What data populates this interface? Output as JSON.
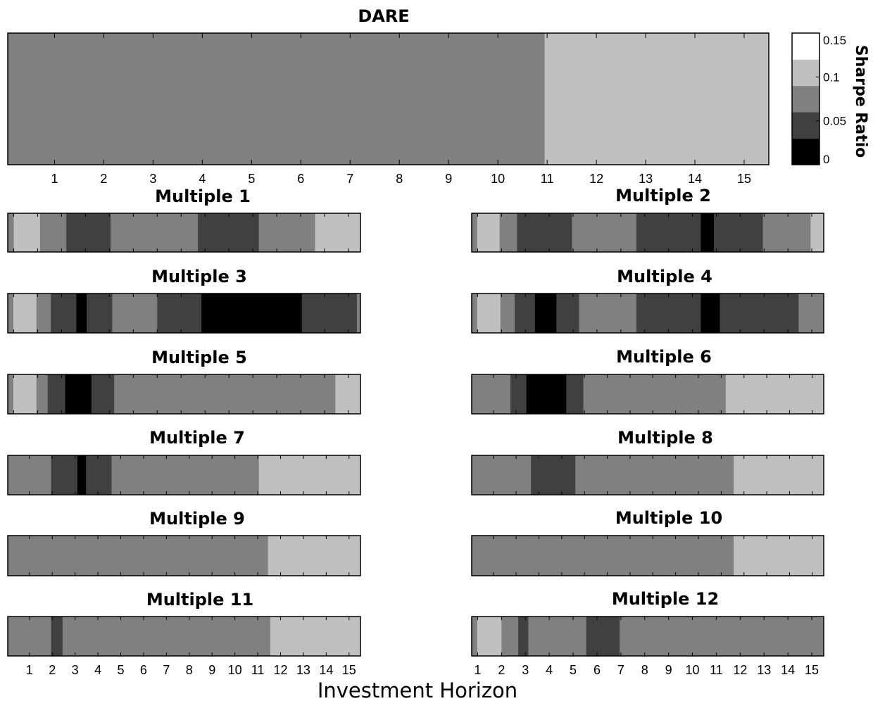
{
  "chart_data": {
    "type": "heatmap",
    "xlabel": "Investment Horizon",
    "colorbar": {
      "title": "Sharpe Ratio",
      "range": [
        0,
        0.15
      ],
      "tick_labels": [
        "0.15",
        "0.1",
        "0.05",
        "0"
      ],
      "tick_values": [
        0.15,
        0.1,
        0.05,
        0
      ],
      "levels": [
        {
          "range": [
            0,
            0.03
          ],
          "color": "#000000"
        },
        {
          "range": [
            0.03,
            0.06
          ],
          "color": "#404040"
        },
        {
          "range": [
            0.06,
            0.09
          ],
          "color": "#808080"
        },
        {
          "range": [
            0.09,
            0.12
          ],
          "color": "#c0c0c0"
        },
        {
          "range": [
            0.12,
            0.15
          ],
          "color": "#ffffff"
        }
      ]
    },
    "panels": [
      {
        "title": "DARE",
        "xrange": [
          0.05,
          15.5
        ],
        "xticks": [
          1,
          2,
          3,
          4,
          5,
          6,
          7,
          8,
          9,
          10,
          11,
          12,
          13,
          14,
          15
        ],
        "segments": [
          {
            "x0": 0.05,
            "x1": 10.95,
            "level": 2
          },
          {
            "x0": 10.95,
            "x1": 15.5,
            "level": 3
          }
        ]
      },
      {
        "title": "Multiple 1",
        "xrange": [
          0.75,
          15.5
        ],
        "xticks": [
          1,
          2,
          3,
          4,
          5,
          6,
          7,
          8,
          9,
          10,
          11,
          12,
          13,
          14,
          15
        ],
        "segments": [
          {
            "x0": 0.75,
            "x1": 1.0,
            "level": 2
          },
          {
            "x0": 1.0,
            "x1": 2.1,
            "level": 3
          },
          {
            "x0": 2.1,
            "x1": 3.2,
            "level": 2
          },
          {
            "x0": 3.2,
            "x1": 5.05,
            "level": 1
          },
          {
            "x0": 5.05,
            "x1": 8.7,
            "level": 2
          },
          {
            "x0": 8.7,
            "x1": 11.25,
            "level": 1
          },
          {
            "x0": 11.25,
            "x1": 13.6,
            "level": 2
          },
          {
            "x0": 13.6,
            "x1": 15.5,
            "level": 3
          }
        ]
      },
      {
        "title": "Multiple 2",
        "xrange": [
          0.75,
          15.5
        ],
        "xticks": [
          1,
          2,
          3,
          4,
          5,
          6,
          7,
          8,
          9,
          10,
          11,
          12,
          13,
          14,
          15
        ],
        "segments": [
          {
            "x0": 0.75,
            "x1": 0.98,
            "level": 2
          },
          {
            "x0": 0.98,
            "x1": 1.92,
            "level": 3
          },
          {
            "x0": 1.92,
            "x1": 2.65,
            "level": 2
          },
          {
            "x0": 2.65,
            "x1": 4.95,
            "level": 1
          },
          {
            "x0": 4.95,
            "x1": 7.65,
            "level": 2
          },
          {
            "x0": 7.65,
            "x1": 10.35,
            "level": 1
          },
          {
            "x0": 10.35,
            "x1": 10.9,
            "level": 0
          },
          {
            "x0": 10.9,
            "x1": 12.95,
            "level": 1
          },
          {
            "x0": 12.95,
            "x1": 14.95,
            "level": 2
          },
          {
            "x0": 14.95,
            "x1": 15.5,
            "level": 3
          }
        ]
      },
      {
        "title": "Multiple 3",
        "xrange": [
          0.75,
          15.5
        ],
        "xticks": [
          1,
          2,
          3,
          4,
          5,
          6,
          7,
          8,
          9,
          10,
          11,
          12,
          13,
          14,
          15
        ],
        "segments": [
          {
            "x0": 0.75,
            "x1": 0.98,
            "level": 2
          },
          {
            "x0": 0.98,
            "x1": 1.95,
            "level": 3
          },
          {
            "x0": 1.95,
            "x1": 2.55,
            "level": 2
          },
          {
            "x0": 2.55,
            "x1": 3.62,
            "level": 1
          },
          {
            "x0": 3.62,
            "x1": 4.05,
            "level": 0
          },
          {
            "x0": 4.05,
            "x1": 5.12,
            "level": 1
          },
          {
            "x0": 5.12,
            "x1": 7.0,
            "level": 2
          },
          {
            "x0": 7.0,
            "x1": 8.85,
            "level": 1
          },
          {
            "x0": 8.85,
            "x1": 13.05,
            "level": 0
          },
          {
            "x0": 13.05,
            "x1": 15.35,
            "level": 1
          },
          {
            "x0": 15.35,
            "x1": 15.5,
            "level": 2
          }
        ]
      },
      {
        "title": "Multiple 4",
        "xrange": [
          0.75,
          15.5
        ],
        "xticks": [
          1,
          2,
          3,
          4,
          5,
          6,
          7,
          8,
          9,
          10,
          11,
          12,
          13,
          14,
          15
        ],
        "segments": [
          {
            "x0": 0.75,
            "x1": 0.98,
            "level": 2
          },
          {
            "x0": 0.98,
            "x1": 1.95,
            "level": 3
          },
          {
            "x0": 1.95,
            "x1": 2.55,
            "level": 2
          },
          {
            "x0": 2.55,
            "x1": 3.4,
            "level": 1
          },
          {
            "x0": 3.4,
            "x1": 4.3,
            "level": 0
          },
          {
            "x0": 4.3,
            "x1": 5.25,
            "level": 1
          },
          {
            "x0": 5.25,
            "x1": 7.65,
            "level": 2
          },
          {
            "x0": 7.65,
            "x1": 10.35,
            "level": 1
          },
          {
            "x0": 10.35,
            "x1": 11.15,
            "level": 0
          },
          {
            "x0": 11.15,
            "x1": 14.45,
            "level": 1
          },
          {
            "x0": 14.45,
            "x1": 15.5,
            "level": 2
          }
        ]
      },
      {
        "title": "Multiple 5",
        "xrange": [
          0.75,
          15.5
        ],
        "xticks": [
          1,
          2,
          3,
          4,
          5,
          6,
          7,
          8,
          9,
          10,
          11,
          12,
          13,
          14,
          15
        ],
        "segments": [
          {
            "x0": 0.75,
            "x1": 0.98,
            "level": 2
          },
          {
            "x0": 0.98,
            "x1": 1.95,
            "level": 3
          },
          {
            "x0": 1.95,
            "x1": 2.42,
            "level": 2
          },
          {
            "x0": 2.42,
            "x1": 3.15,
            "level": 1
          },
          {
            "x0": 3.15,
            "x1": 4.25,
            "level": 0
          },
          {
            "x0": 4.25,
            "x1": 5.2,
            "level": 1
          },
          {
            "x0": 5.2,
            "x1": 14.45,
            "level": 2
          },
          {
            "x0": 14.45,
            "x1": 15.5,
            "level": 3
          }
        ]
      },
      {
        "title": "Multiple 6",
        "xrange": [
          0.05,
          15.5
        ],
        "xticks": [
          1,
          2,
          3,
          4,
          5,
          6,
          7,
          8,
          9,
          10,
          11,
          12,
          13,
          14,
          15
        ],
        "segments": [
          {
            "x0": 0.05,
            "x1": 1.75,
            "level": 2
          },
          {
            "x0": 1.75,
            "x1": 2.45,
            "level": 1
          },
          {
            "x0": 2.45,
            "x1": 4.2,
            "level": 0
          },
          {
            "x0": 4.2,
            "x1": 4.95,
            "level": 1
          },
          {
            "x0": 4.95,
            "x1": 11.2,
            "level": 2
          },
          {
            "x0": 11.2,
            "x1": 15.5,
            "level": 3
          }
        ]
      },
      {
        "title": "Multiple 7",
        "xrange": [
          0.05,
          15.5
        ],
        "xticks": [
          1,
          2,
          3,
          4,
          5,
          6,
          7,
          8,
          9,
          10,
          11,
          12,
          13,
          14,
          15
        ],
        "segments": [
          {
            "x0": 0.05,
            "x1": 1.95,
            "level": 2
          },
          {
            "x0": 1.95,
            "x1": 3.1,
            "level": 1
          },
          {
            "x0": 3.1,
            "x1": 3.48,
            "level": 0
          },
          {
            "x0": 3.48,
            "x1": 4.6,
            "level": 1
          },
          {
            "x0": 4.6,
            "x1": 11.05,
            "level": 2
          },
          {
            "x0": 11.05,
            "x1": 15.5,
            "level": 3
          }
        ]
      },
      {
        "title": "Multiple 8",
        "xrange": [
          0.05,
          15.5
        ],
        "xticks": [
          1,
          2,
          3,
          4,
          5,
          6,
          7,
          8,
          9,
          10,
          11,
          12,
          13,
          14,
          15
        ],
        "segments": [
          {
            "x0": 0.05,
            "x1": 2.65,
            "level": 2
          },
          {
            "x0": 2.65,
            "x1": 4.6,
            "level": 1
          },
          {
            "x0": 4.6,
            "x1": 11.55,
            "level": 2
          },
          {
            "x0": 11.55,
            "x1": 15.5,
            "level": 3
          }
        ]
      },
      {
        "title": "Multiple 9",
        "xrange": [
          0.05,
          15.5
        ],
        "xticks": [
          1,
          2,
          3,
          4,
          5,
          6,
          7,
          8,
          9,
          10,
          11,
          12,
          13,
          14,
          15
        ],
        "segments": [
          {
            "x0": 0.05,
            "x1": 11.45,
            "level": 2
          },
          {
            "x0": 11.45,
            "x1": 15.5,
            "level": 3
          }
        ]
      },
      {
        "title": "Multiple 10",
        "xrange": [
          0.05,
          15.5
        ],
        "xticks": [
          1,
          2,
          3,
          4,
          5,
          6,
          7,
          8,
          9,
          10,
          11,
          12,
          13,
          14,
          15
        ],
        "segments": [
          {
            "x0": 0.05,
            "x1": 11.55,
            "level": 2
          },
          {
            "x0": 11.55,
            "x1": 15.5,
            "level": 3
          }
        ]
      },
      {
        "title": "Multiple 11",
        "xrange": [
          0.05,
          15.5
        ],
        "xticks": [
          1,
          2,
          3,
          4,
          5,
          6,
          7,
          8,
          9,
          10,
          11,
          12,
          13,
          14,
          15
        ],
        "show_tick_labels": true,
        "segments": [
          {
            "x0": 0.05,
            "x1": 1.95,
            "level": 2
          },
          {
            "x0": 1.95,
            "x1": 2.45,
            "level": 1
          },
          {
            "x0": 2.45,
            "x1": 11.55,
            "level": 2
          },
          {
            "x0": 11.55,
            "x1": 15.5,
            "level": 3
          }
        ]
      },
      {
        "title": "Multiple 12",
        "xrange": [
          0.75,
          15.5
        ],
        "xticks": [
          1,
          2,
          3,
          4,
          5,
          6,
          7,
          8,
          9,
          10,
          11,
          12,
          13,
          14,
          15
        ],
        "show_tick_labels": true,
        "segments": [
          {
            "x0": 0.75,
            "x1": 0.98,
            "level": 2
          },
          {
            "x0": 0.98,
            "x1": 2.0,
            "level": 3
          },
          {
            "x0": 2.0,
            "x1": 2.7,
            "level": 2
          },
          {
            "x0": 2.7,
            "x1": 3.12,
            "level": 1
          },
          {
            "x0": 3.12,
            "x1": 5.55,
            "level": 2
          },
          {
            "x0": 5.55,
            "x1": 6.95,
            "level": 1
          },
          {
            "x0": 6.95,
            "x1": 15.5,
            "level": 2
          }
        ]
      }
    ]
  }
}
